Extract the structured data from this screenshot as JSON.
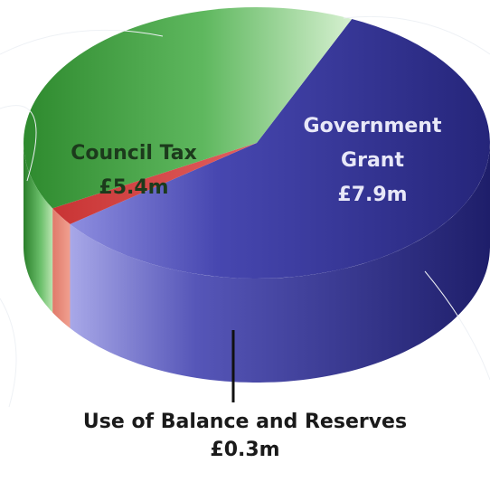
{
  "chart_data": {
    "type": "pie",
    "title": "",
    "slices": [
      {
        "label": "Government Grant",
        "value_text": "£7.9m",
        "value": 7.9,
        "color": "#2f2f8e"
      },
      {
        "label": "Use of Balance and Reserves",
        "value_text": "£0.3m",
        "value": 0.3,
        "color": "#d84a4a"
      },
      {
        "label": "Council Tax",
        "value_text": "£5.4m",
        "value": 5.4,
        "color": "#4faa4f"
      }
    ]
  }
}
